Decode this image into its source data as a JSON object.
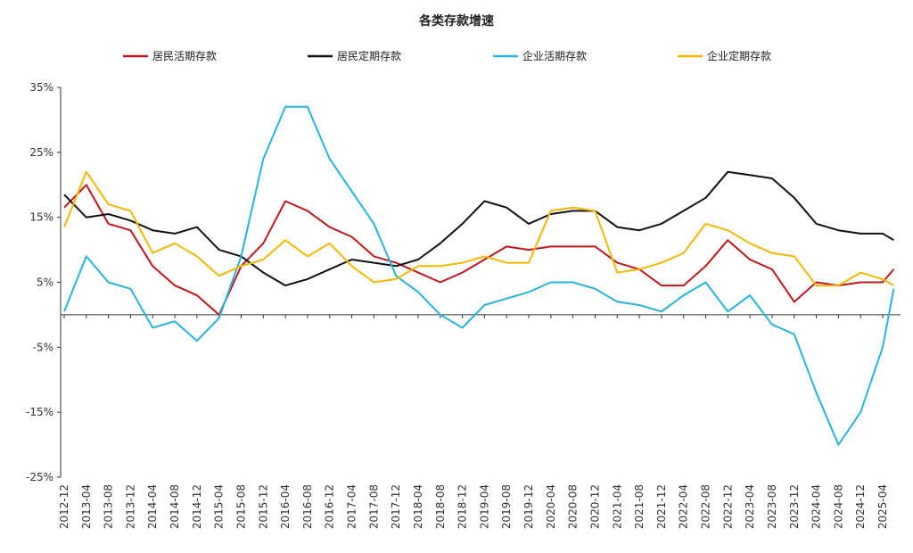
{
  "chart_data": {
    "type": "line",
    "title": "各类存款增速",
    "xlabel": "",
    "ylabel": "",
    "ylim": [
      -25,
      35
    ],
    "yticks": [
      35,
      25,
      15,
      5,
      -5,
      -15,
      -25
    ],
    "ytick_labels": [
      "35%",
      "25%",
      "15%",
      "5%",
      "-5%",
      "-15%",
      "-25%"
    ],
    "x_labels": [
      "2012-12",
      "2013-04",
      "2013-08",
      "2013-12",
      "2014-04",
      "2014-08",
      "2014-12",
      "2015-04",
      "2015-08",
      "2015-12",
      "2016-04",
      "2016-08",
      "2016-12",
      "2017-04",
      "2017-08",
      "2017-12",
      "2018-04",
      "2018-08",
      "2018-12",
      "2019-04",
      "2019-08",
      "2019-12",
      "2020-04",
      "2020-08",
      "2020-12",
      "2021-04",
      "2021-08",
      "2021-12",
      "2022-04",
      "2022-08",
      "2022-12",
      "2023-04",
      "2023-08",
      "2023-12",
      "2024-04",
      "2024-08",
      "2024-12",
      "2025-04"
    ],
    "legend_position": "top",
    "series": [
      {
        "name": "居民活期存款",
        "color": "#c0171c",
        "points": [
          [
            "2012-12",
            16.5
          ],
          [
            "2013-04",
            20
          ],
          [
            "2013-08",
            14
          ],
          [
            "2013-12",
            13
          ],
          [
            "2014-04",
            7.5
          ],
          [
            "2014-08",
            4.5
          ],
          [
            "2014-12",
            3
          ],
          [
            "2015-04",
            0
          ],
          [
            "2015-08",
            7.5
          ],
          [
            "2015-12",
            11
          ],
          [
            "2016-04",
            17.5
          ],
          [
            "2016-08",
            16
          ],
          [
            "2016-12",
            13.5
          ],
          [
            "2017-04",
            12
          ],
          [
            "2017-08",
            9
          ],
          [
            "2017-12",
            8
          ],
          [
            "2018-04",
            6.5
          ],
          [
            "2018-08",
            5
          ],
          [
            "2018-12",
            6.5
          ],
          [
            "2019-04",
            8.5
          ],
          [
            "2019-08",
            10.5
          ],
          [
            "2019-12",
            10
          ],
          [
            "2020-04",
            10.5
          ],
          [
            "2020-08",
            10.5
          ],
          [
            "2020-12",
            10.5
          ],
          [
            "2021-04",
            8
          ],
          [
            "2021-08",
            7
          ],
          [
            "2021-12",
            4.5
          ],
          [
            "2022-04",
            4.5
          ],
          [
            "2022-08",
            7.5
          ],
          [
            "2022-12",
            11.5
          ],
          [
            "2023-04",
            8.5
          ],
          [
            "2023-08",
            7
          ],
          [
            "2023-12",
            2
          ],
          [
            "2024-04",
            5
          ],
          [
            "2024-08",
            4.5
          ],
          [
            "2024-12",
            5
          ],
          [
            "2025-04",
            5
          ],
          [
            "2025-06",
            7
          ]
        ]
      },
      {
        "name": "居民定期存款",
        "color": "#111111",
        "points": [
          [
            "2012-12",
            18.5
          ],
          [
            "2013-04",
            15
          ],
          [
            "2013-08",
            15.5
          ],
          [
            "2013-12",
            14.5
          ],
          [
            "2014-04",
            13
          ],
          [
            "2014-08",
            12.5
          ],
          [
            "2014-12",
            13.5
          ],
          [
            "2015-04",
            10
          ],
          [
            "2015-08",
            9
          ],
          [
            "2015-12",
            6.5
          ],
          [
            "2016-04",
            4.5
          ],
          [
            "2016-08",
            5.5
          ],
          [
            "2016-12",
            7
          ],
          [
            "2017-04",
            8.5
          ],
          [
            "2017-08",
            8
          ],
          [
            "2017-12",
            7.5
          ],
          [
            "2018-04",
            8.5
          ],
          [
            "2018-08",
            11
          ],
          [
            "2018-12",
            14
          ],
          [
            "2019-04",
            17.5
          ],
          [
            "2019-08",
            16.5
          ],
          [
            "2019-12",
            14
          ],
          [
            "2020-04",
            15.5
          ],
          [
            "2020-08",
            16
          ],
          [
            "2020-12",
            16
          ],
          [
            "2021-04",
            13.5
          ],
          [
            "2021-08",
            13
          ],
          [
            "2021-12",
            14
          ],
          [
            "2022-04",
            16
          ],
          [
            "2022-08",
            18
          ],
          [
            "2022-12",
            22
          ],
          [
            "2023-04",
            21.5
          ],
          [
            "2023-08",
            21
          ],
          [
            "2023-12",
            18
          ],
          [
            "2024-04",
            14
          ],
          [
            "2024-08",
            13
          ],
          [
            "2024-12",
            12.5
          ],
          [
            "2025-04",
            12.5
          ],
          [
            "2025-06",
            11.5
          ]
        ]
      },
      {
        "name": "企业活期存款",
        "color": "#27b3dc",
        "points": [
          [
            "2012-12",
            0.5
          ],
          [
            "2013-04",
            9
          ],
          [
            "2013-08",
            5
          ],
          [
            "2013-12",
            4
          ],
          [
            "2014-04",
            -2
          ],
          [
            "2014-08",
            -1
          ],
          [
            "2014-12",
            -4
          ],
          [
            "2015-04",
            -0.5
          ],
          [
            "2015-08",
            9
          ],
          [
            "2015-12",
            24
          ],
          [
            "2016-04",
            32
          ],
          [
            "2016-08",
            32
          ],
          [
            "2016-12",
            24
          ],
          [
            "2017-04",
            19
          ],
          [
            "2017-08",
            14
          ],
          [
            "2017-12",
            6
          ],
          [
            "2018-04",
            3.5
          ],
          [
            "2018-08",
            0
          ],
          [
            "2018-12",
            -2
          ],
          [
            "2019-04",
            1.5
          ],
          [
            "2019-08",
            2.5
          ],
          [
            "2019-12",
            3.5
          ],
          [
            "2020-04",
            5
          ],
          [
            "2020-08",
            5
          ],
          [
            "2020-12",
            4
          ],
          [
            "2021-04",
            2
          ],
          [
            "2021-08",
            1.5
          ],
          [
            "2021-12",
            0.5
          ],
          [
            "2022-04",
            3
          ],
          [
            "2022-08",
            5
          ],
          [
            "2022-12",
            0.5
          ],
          [
            "2023-04",
            3
          ],
          [
            "2023-08",
            -1.5
          ],
          [
            "2023-12",
            -3
          ],
          [
            "2024-04",
            -12
          ],
          [
            "2024-08",
            -20
          ],
          [
            "2024-12",
            -15
          ],
          [
            "2025-04",
            -5
          ],
          [
            "2025-06",
            4
          ]
        ]
      },
      {
        "name": "企业定期存款",
        "color": "#f5b800",
        "points": [
          [
            "2012-12",
            13.5
          ],
          [
            "2013-04",
            22
          ],
          [
            "2013-08",
            17
          ],
          [
            "2013-12",
            16
          ],
          [
            "2014-04",
            9.5
          ],
          [
            "2014-08",
            11
          ],
          [
            "2014-12",
            9
          ],
          [
            "2015-04",
            6
          ],
          [
            "2015-08",
            7.5
          ],
          [
            "2015-12",
            8.5
          ],
          [
            "2016-04",
            11.5
          ],
          [
            "2016-08",
            9
          ],
          [
            "2016-12",
            11
          ],
          [
            "2017-04",
            7.5
          ],
          [
            "2017-08",
            5
          ],
          [
            "2017-12",
            5.5
          ],
          [
            "2018-04",
            7.5
          ],
          [
            "2018-08",
            7.5
          ],
          [
            "2018-12",
            8
          ],
          [
            "2019-04",
            9
          ],
          [
            "2019-08",
            8
          ],
          [
            "2019-12",
            8
          ],
          [
            "2020-04",
            16
          ],
          [
            "2020-08",
            16.5
          ],
          [
            "2020-12",
            16
          ],
          [
            "2021-04",
            6.5
          ],
          [
            "2021-08",
            7
          ],
          [
            "2021-12",
            8
          ],
          [
            "2022-04",
            9.5
          ],
          [
            "2022-08",
            14
          ],
          [
            "2022-12",
            13
          ],
          [
            "2023-04",
            11
          ],
          [
            "2023-08",
            9.5
          ],
          [
            "2023-12",
            9
          ],
          [
            "2024-04",
            4.5
          ],
          [
            "2024-08",
            4.5
          ],
          [
            "2024-12",
            6.5
          ],
          [
            "2025-04",
            5.5
          ],
          [
            "2025-06",
            4.5
          ]
        ]
      }
    ]
  }
}
